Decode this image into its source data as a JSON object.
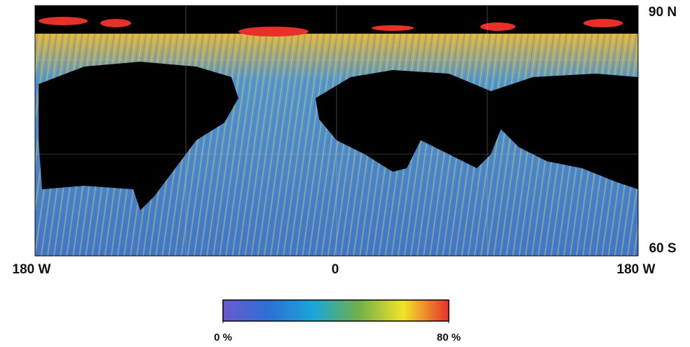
{
  "map": {
    "lat_labels": [
      "90 N",
      "60 S"
    ],
    "lon_labels": [
      "180 W",
      "0",
      "180 W"
    ],
    "colorbar": {
      "range": [
        0,
        80
      ],
      "ticks": [
        {
          "value": 0,
          "label": "0 %"
        },
        {
          "value": 80,
          "label": "80 %"
        }
      ],
      "colors": [
        "#6a5acd",
        "#2d6fd6",
        "#1aa6d8",
        "#6fb04a",
        "#f2e32a",
        "#e8302a"
      ]
    }
  }
}
